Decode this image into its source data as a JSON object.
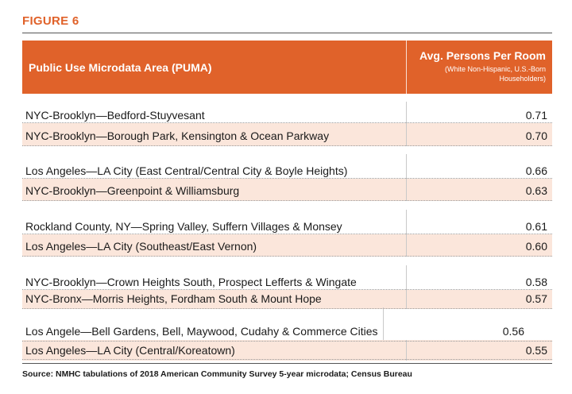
{
  "figure_label": "FIGURE 6",
  "header": {
    "col1": "Public Use Microdata Area (PUMA)",
    "col2_main": "Avg. Persons Per Room",
    "col2_sub": "(White Non-Hispanic, U.S.-Born Householders)"
  },
  "rows": [
    {
      "name": "NYC-Brooklyn—Bedford-Stuyvesant",
      "value": "0.71"
    },
    {
      "name": "NYC-Brooklyn—Borough Park, Kensington & Ocean Parkway",
      "value": "0.70"
    },
    {
      "name": "Los Angeles—LA City (East Central/Central City & Boyle Heights)",
      "value": "0.66"
    },
    {
      "name": "NYC-Brooklyn—Greenpoint & Williamsburg",
      "value": "0.63"
    },
    {
      "name": "Rockland County, NY—Spring Valley, Suffern Villages & Monsey",
      "value": "0.61"
    },
    {
      "name": "Los Angeles—LA City (Southeast/East Vernon)",
      "value": "0.60"
    },
    {
      "name": "NYC-Brooklyn—Crown Heights South, Prospect Lefferts & Wingate",
      "value": "0.58"
    },
    {
      "name": "NYC-Bronx—Morris Heights, Fordham South & Mount Hope",
      "value": "0.57"
    },
    {
      "name": "Los Angele—Bell Gardens, Bell, Maywood, Cudahy & Commerce Cities",
      "value": "0.56"
    },
    {
      "name": "Los Angeles—LA City (Central/Koreatown)",
      "value": "0.55"
    }
  ],
  "source": "Source: NMHC tabulations of 2018 American Community Survey 5-year microdata; Census Bureau"
}
